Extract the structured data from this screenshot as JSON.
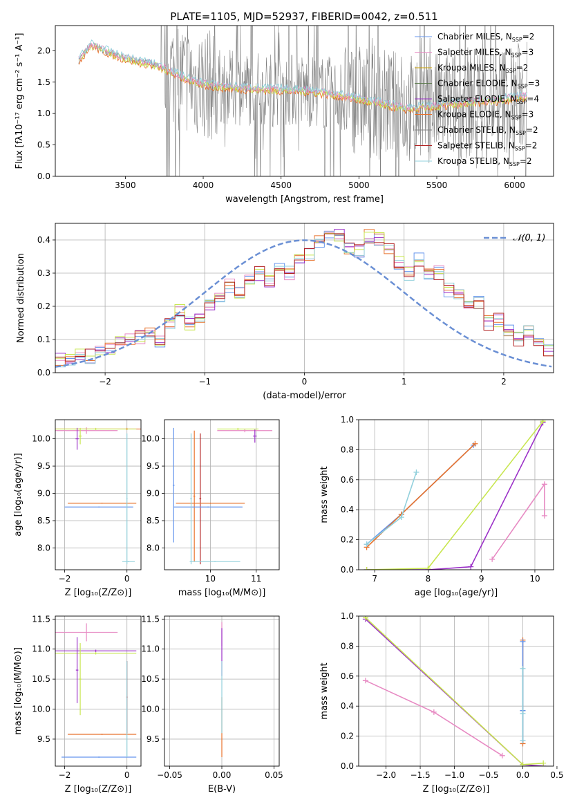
{
  "title": "PLATE=1105, MJD=52937, FIBERID=0042, z=0.511",
  "colors": {
    "chabrier_miles": "#6495ed",
    "salpeter_miles": "#e78ac3",
    "kroupa_miles": "#c8a000",
    "chabrier_elodie": "#5a7a4a",
    "salpeter_elodie": "#9b30c8",
    "kroupa_elodie": "#e8722c",
    "chabrier_stelib": "#808080",
    "salpeter_stelib": "#b22222",
    "kroupa_stelib": "#92d0dc",
    "yellowgreen": "#c8e650",
    "normal_curve": "#6a8fd4",
    "grid": "#b0b0b0"
  },
  "chart_data": [
    {
      "id": "spectrum",
      "type": "line",
      "xlabel": "wavelength [Angstrom, rest frame]",
      "ylabel": "Flux [fλ10⁻¹⁷ erg cm⁻² s⁻¹ A⁻¹]",
      "xlim": [
        3050,
        6250
      ],
      "ylim": [
        0,
        2.4
      ],
      "xticks": [
        "3500",
        "4000",
        "4500",
        "5000",
        "5500",
        "6000"
      ],
      "yticks": [
        "0.0",
        "0.5",
        "1.0",
        "1.5",
        "2.0"
      ],
      "grid": false,
      "legend_position": "upper-right",
      "legend": [
        {
          "label": "Chabrier MILES, N",
          "sub": "SSP",
          "tail": "=2",
          "color_key": "chabrier_miles"
        },
        {
          "label": "Salpeter MILES, N",
          "sub": "SSP",
          "tail": "=3",
          "color_key": "salpeter_miles"
        },
        {
          "label": "Kroupa MILES, N",
          "sub": "SSP",
          "tail": "=2",
          "color_key": "kroupa_miles"
        },
        {
          "label": "Chabrier ELODIE, N",
          "sub": "SSP",
          "tail": "=3",
          "color_key": "chabrier_elodie"
        },
        {
          "label": "Salpeter ELODIE, N",
          "sub": "SSP",
          "tail": "=4",
          "color_key": "salpeter_elodie"
        },
        {
          "label": "Kroupa ELODIE, N",
          "sub": "SSP",
          "tail": "=3",
          "color_key": "kroupa_elodie"
        },
        {
          "label": "Chabrier STELIB, N",
          "sub": "SSP",
          "tail": "=2",
          "color_key": "chabrier_stelib"
        },
        {
          "label": "Salpeter STELIB, N",
          "sub": "SSP",
          "tail": "=2",
          "color_key": "salpeter_stelib"
        },
        {
          "label": "Kroupa STELIB, N",
          "sub": "SSP",
          "tail": "=2",
          "color_key": "kroupa_stelib"
        }
      ],
      "continuum": {
        "x": [
          3200,
          3280,
          3350,
          3450,
          3550,
          3650,
          3750,
          3850,
          3950,
          4050,
          4150,
          4300,
          4500,
          4700,
          4900,
          5100,
          5300,
          5500,
          5700,
          5900,
          6080
        ],
        "y": [
          1.85,
          2.1,
          2.02,
          1.92,
          1.85,
          1.8,
          1.72,
          1.6,
          1.5,
          1.45,
          1.42,
          1.4,
          1.38,
          1.36,
          1.28,
          1.18,
          1.08,
          1.12,
          1.18,
          1.22,
          1.28
        ]
      }
    },
    {
      "id": "residuals",
      "type": "histogram",
      "xlabel": "(data-model)/error",
      "ylabel": "Normed distribution",
      "xlim": [
        -2.5,
        2.5
      ],
      "ylim": [
        0,
        0.45
      ],
      "xticks": [
        "−2",
        "−1",
        "0",
        "1",
        "2"
      ],
      "yticks": [
        "0.0",
        "0.1",
        "0.2",
        "0.3",
        "0.4"
      ],
      "grid": true,
      "bin_edges_start": -2.5,
      "bin_width": 0.1,
      "approx_bin_heights": [
        0.04,
        0.045,
        0.055,
        0.05,
        0.06,
        0.07,
        0.09,
        0.1,
        0.11,
        0.12,
        0.09,
        0.15,
        0.19,
        0.15,
        0.16,
        0.2,
        0.22,
        0.26,
        0.24,
        0.28,
        0.3,
        0.28,
        0.33,
        0.3,
        0.34,
        0.36,
        0.4,
        0.42,
        0.41,
        0.38,
        0.37,
        0.41,
        0.4,
        0.37,
        0.33,
        0.3,
        0.34,
        0.29,
        0.3,
        0.25,
        0.24,
        0.2,
        0.21,
        0.15,
        0.16,
        0.13,
        0.1,
        0.12,
        0.08,
        0.07
      ],
      "normal_curve_label": "𝒩(0, 1)",
      "legend_position": "upper-right"
    },
    {
      "id": "age_vs_Z",
      "type": "errorbar",
      "xlabel": "Z [log₁₀(Z/Z⊙)]",
      "ylabel": "age  [log₁₀(age/yr)]",
      "xlim": [
        -2.3,
        0.45
      ],
      "ylim": [
        7.6,
        10.35
      ],
      "xticks": [
        "−2",
        "0"
      ],
      "yticks": [
        "8.0",
        "8.5",
        "9.0",
        "9.5",
        "10.0"
      ],
      "grid": true,
      "bars": [
        {
          "color_key": "salpeter_miles",
          "cx": -1.3,
          "cy": 10.15,
          "xe": 1.0,
          "ye": 0.06
        },
        {
          "color_key": "kroupa_elodie",
          "cx": 0.0,
          "cy": 10.18,
          "xe": 2.3,
          "ye": 0.02
        },
        {
          "color_key": "yellowgreen",
          "cx": -1.0,
          "cy": 10.18,
          "xe": 1.3,
          "ye": 0.02
        },
        {
          "color_key": "salpeter_elodie",
          "cx": -1.6,
          "cy": 10.0,
          "xe": 0.05,
          "ye": 0.2
        },
        {
          "color_key": "yellowgreen",
          "cx": -1.5,
          "cy": 10.05,
          "xe": 0.05,
          "ye": 0.15
        },
        {
          "color_key": "kroupa_elodie",
          "cx": -0.8,
          "cy": 8.82,
          "xe": 1.1,
          "ye": 0.01
        },
        {
          "color_key": "chabrier_miles",
          "cx": -0.9,
          "cy": 8.75,
          "xe": 1.1,
          "ye": 0.01
        },
        {
          "color_key": "kroupa_stelib",
          "cx": 0.0,
          "cy": 8.9,
          "xe": 0.02,
          "ye": 1.2
        },
        {
          "color_key": "kroupa_stelib",
          "cx": 0.05,
          "cy": 7.75,
          "xe": 0.2,
          "ye": 0.01
        }
      ]
    },
    {
      "id": "age_vs_mass",
      "type": "errorbar",
      "xlabel": "mass [log₁₀(M/M⊙)]",
      "ylabel": "",
      "xlim": [
        9.0,
        11.5
      ],
      "ylim": [
        7.6,
        10.35
      ],
      "xticks": [
        "10",
        "11"
      ],
      "yticks": [
        "8.0",
        "8.5",
        "9.0",
        "9.5",
        "10.0"
      ],
      "grid": true,
      "bars": [
        {
          "color_key": "salpeter_miles",
          "cx": 10.75,
          "cy": 10.15,
          "xe": 0.6,
          "ye": 0.03
        },
        {
          "color_key": "yellowgreen",
          "cx": 10.6,
          "cy": 10.18,
          "xe": 0.45,
          "ye": 0.02
        },
        {
          "color_key": "salpeter_elodie",
          "cx": 10.97,
          "cy": 10.05,
          "xe": 0.04,
          "ye": 0.12
        },
        {
          "color_key": "chabrier_miles",
          "cx": 9.2,
          "cy": 9.15,
          "xe": 0.02,
          "ye": 1.05
        },
        {
          "color_key": "kroupa_elodie",
          "cx": 9.65,
          "cy": 8.95,
          "xe": 0.02,
          "ye": 1.2
        },
        {
          "color_key": "salpeter_stelib",
          "cx": 9.78,
          "cy": 8.9,
          "xe": 0.02,
          "ye": 1.2
        },
        {
          "color_key": "kroupa_elodie",
          "cx": 10.0,
          "cy": 8.82,
          "xe": 0.75,
          "ye": 0.01
        },
        {
          "color_key": "chabrier_miles",
          "cx": 9.95,
          "cy": 8.75,
          "xe": 0.75,
          "ye": 0.01
        },
        {
          "color_key": "kroupa_stelib",
          "cx": 9.58,
          "cy": 8.9,
          "xe": 0.02,
          "ye": 1.2
        },
        {
          "color_key": "kroupa_stelib",
          "cx": 10.1,
          "cy": 7.75,
          "xe": 0.55,
          "ye": 0.01
        }
      ]
    },
    {
      "id": "weight_vs_age",
      "type": "line",
      "xlabel": "age  [log₁₀(age/yr)]",
      "ylabel": "mass weight",
      "xlim": [
        6.7,
        10.35
      ],
      "ylim": [
        0,
        1.0
      ],
      "xticks": [
        "7",
        "8",
        "9",
        "10"
      ],
      "yticks": [
        "0.0",
        "0.2",
        "0.4",
        "0.6",
        "0.8",
        "1.0"
      ],
      "grid": true,
      "series": [
        {
          "color_key": "chabrier_miles",
          "x": [
            6.85,
            7.5,
            8.85
          ],
          "y": [
            0.17,
            0.37,
            0.83
          ]
        },
        {
          "color_key": "kroupa_elodie",
          "x": [
            6.85,
            7.5,
            8.88
          ],
          "y": [
            0.15,
            0.37,
            0.84
          ]
        },
        {
          "color_key": "kroupa_stelib",
          "x": [
            6.85,
            7.5,
            7.78
          ],
          "y": [
            0.17,
            0.35,
            0.65
          ]
        },
        {
          "color_key": "salpeter_elodie",
          "x": [
            6.85,
            8.0,
            8.8,
            10.15
          ],
          "y": [
            0.0,
            0.0,
            0.02,
            0.98
          ]
        },
        {
          "color_key": "yellowgreen",
          "x": [
            6.85,
            8.0,
            10.15
          ],
          "y": [
            0.0,
            0.01,
            0.99
          ]
        },
        {
          "color_key": "salpeter_miles",
          "x": [
            9.2,
            10.18,
            10.18
          ],
          "y": [
            0.07,
            0.57,
            0.36
          ]
        }
      ]
    },
    {
      "id": "mass_vs_Z",
      "type": "errorbar",
      "xlabel": "Z [log₁₀(Z/Z⊙)]",
      "ylabel": "mass [log₁₀(M/M⊙)]",
      "xlim": [
        -2.3,
        0.45
      ],
      "ylim": [
        9.05,
        11.55
      ],
      "xticks": [
        "−2",
        "0"
      ],
      "yticks": [
        "9.5",
        "10.0",
        "10.5",
        "11.0",
        "11.5"
      ],
      "grid": true,
      "bars": [
        {
          "color_key": "salpeter_miles",
          "cx": -1.3,
          "cy": 11.28,
          "xe": 1.0,
          "ye": 0.15
        },
        {
          "color_key": "salpeter_elodie",
          "cx": -1.0,
          "cy": 10.97,
          "xe": 1.3,
          "ye": 0.02
        },
        {
          "color_key": "yellowgreen",
          "cx": -1.0,
          "cy": 10.93,
          "xe": 1.3,
          "ye": 0.02
        },
        {
          "color_key": "salpeter_elodie",
          "cx": -1.6,
          "cy": 10.65,
          "xe": 0.04,
          "ye": 0.55
        },
        {
          "color_key": "yellowgreen",
          "cx": -1.5,
          "cy": 10.5,
          "xe": 0.04,
          "ye": 0.6
        },
        {
          "color_key": "salpeter_stelib",
          "cx": 0.0,
          "cy": 10.2,
          "xe": 0.02,
          "ye": 0.6
        },
        {
          "color_key": "kroupa_elodie",
          "cx": -0.8,
          "cy": 9.58,
          "xe": 1.1,
          "ye": 0.01
        },
        {
          "color_key": "chabrier_miles",
          "cx": -0.9,
          "cy": 9.2,
          "xe": 1.2,
          "ye": 0.01
        },
        {
          "color_key": "kroupa_stelib",
          "cx": 0.0,
          "cy": 10.0,
          "xe": 0.02,
          "ye": 0.8
        }
      ]
    },
    {
      "id": "mass_vs_ebv",
      "type": "errorbar",
      "xlabel": "E(B-V)",
      "ylabel": "",
      "xlim": [
        -0.055,
        0.055
      ],
      "ylim": [
        9.05,
        11.55
      ],
      "xticks": [
        "−0.05",
        "0.00",
        "0.05"
      ],
      "yticks": [
        "9.5",
        "10.0",
        "10.5",
        "11.0",
        "11.5"
      ],
      "grid": true,
      "bars": [
        {
          "color_key": "salpeter_miles",
          "cx": 0.0,
          "cy": 11.25,
          "xe": 0.0,
          "ye": 0.2
        },
        {
          "color_key": "salpeter_elodie",
          "cx": 0.0,
          "cy": 10.95,
          "xe": 0.0,
          "ye": 0.4
        },
        {
          "color_key": "kroupa_elodie",
          "cx": 0.0,
          "cy": 9.7,
          "xe": 0.0,
          "ye": 0.5
        },
        {
          "color_key": "kroupa_stelib",
          "cx": 0.0,
          "cy": 10.2,
          "xe": 0.0,
          "ye": 0.6
        }
      ]
    },
    {
      "id": "weight_vs_Z",
      "type": "line",
      "xlabel": "Z [log₁₀(Z/Z⊙)]",
      "ylabel": "mass weight",
      "xlim": [
        -2.4,
        0.45
      ],
      "ylim": [
        0,
        1.0
      ],
      "xticks": [
        "−2.0",
        "−1.5",
        "−1.0",
        "−0.5",
        "0.0",
        "0.5"
      ],
      "yticks": [
        "0.0",
        "0.2",
        "0.4",
        "0.6",
        "0.8",
        "1.0"
      ],
      "grid": true,
      "series": [
        {
          "color_key": "salpeter_elodie",
          "x": [
            -2.3,
            0.0,
            0.3
          ],
          "y": [
            0.98,
            0.01,
            0.0
          ]
        },
        {
          "color_key": "yellowgreen",
          "x": [
            -2.3,
            0.0,
            0.3
          ],
          "y": [
            0.99,
            0.01,
            0.02
          ]
        },
        {
          "color_key": "salpeter_miles",
          "x": [
            -2.3,
            -1.3,
            -0.3
          ],
          "y": [
            0.57,
            0.36,
            0.07
          ]
        },
        {
          "color_key": "kroupa_elodie",
          "x": [
            0.0,
            0.0,
            0.0
          ],
          "y": [
            0.15,
            0.37,
            0.84
          ]
        },
        {
          "color_key": "chabrier_miles",
          "x": [
            0.0,
            0.0,
            0.0
          ],
          "y": [
            0.17,
            0.37,
            0.83
          ]
        },
        {
          "color_key": "kroupa_stelib",
          "x": [
            0.0,
            0.0,
            0.0
          ],
          "y": [
            0.17,
            0.35,
            0.65
          ]
        }
      ]
    }
  ]
}
